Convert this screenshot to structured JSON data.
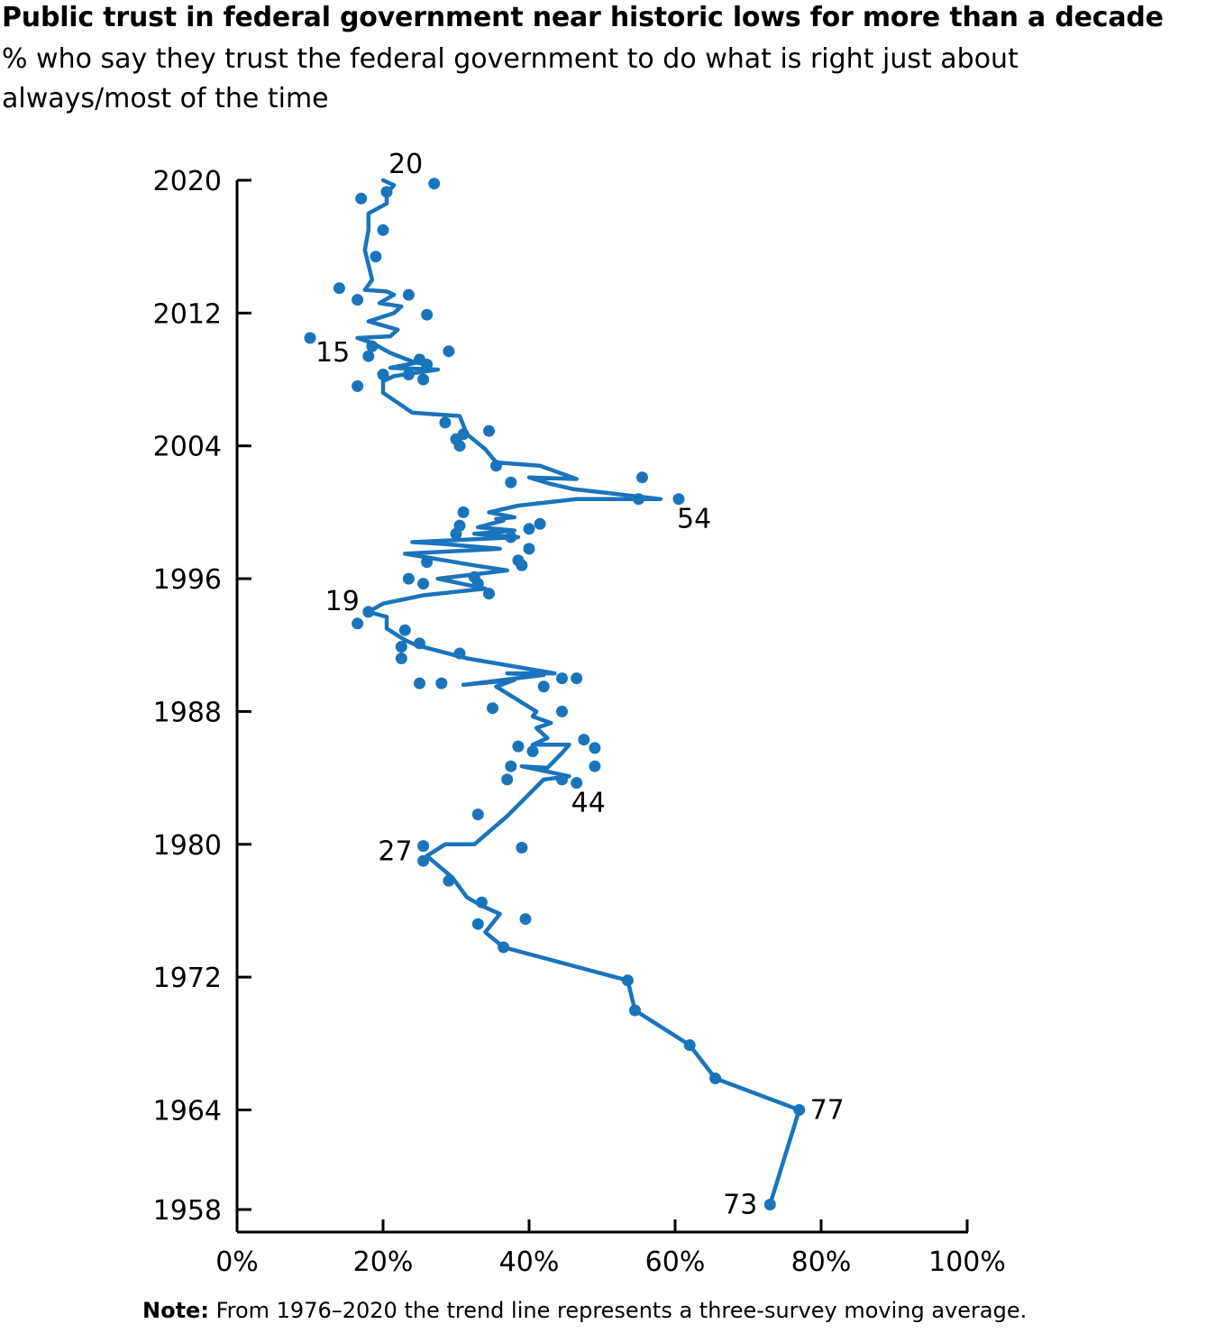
{
  "chart_data": {
    "type": "scatter",
    "title": "Public trust in federal government near historic lows for more than a decade",
    "subtitle": "% who say they trust the federal government to do what is right just about always/most of the time",
    "note_label": "Note:",
    "note_text": "From 1976–2020 the trend line represents a three-survey moving average.",
    "orientation": "vertical-time",
    "x_axis": {
      "min": 0,
      "max": 100,
      "ticks": [
        0,
        20,
        40,
        60,
        80,
        100
      ],
      "tick_labels": [
        "0%",
        "20%",
        "40%",
        "60%",
        "80%",
        "100%"
      ]
    },
    "y_axis": {
      "min": 1958,
      "max": 2020,
      "ticks": [
        1958,
        1964,
        1972,
        1980,
        1988,
        1996,
        2004,
        2012,
        2020
      ],
      "tick_labels": [
        "1958",
        "1964",
        "1972",
        "1980",
        "1988",
        "1996",
        "2004",
        "2012",
        "2020"
      ]
    },
    "color": "#1a74bb",
    "points": [
      {
        "x": 73,
        "y": 1958.3
      },
      {
        "x": 77,
        "y": 1964.0
      },
      {
        "x": 65.5,
        "y": 1965.9
      },
      {
        "x": 62,
        "y": 1967.9
      },
      {
        "x": 54.5,
        "y": 1970.0
      },
      {
        "x": 53.5,
        "y": 1971.8
      },
      {
        "x": 36.5,
        "y": 1973.8
      },
      {
        "x": 33,
        "y": 1975.2
      },
      {
        "x": 39.5,
        "y": 1975.5
      },
      {
        "x": 33.5,
        "y": 1976.5
      },
      {
        "x": 29,
        "y": 1977.8
      },
      {
        "x": 25.5,
        "y": 1979.0
      },
      {
        "x": 25.5,
        "y": 1979.9
      },
      {
        "x": 39,
        "y": 1979.8
      },
      {
        "x": 33,
        "y": 1981.8
      },
      {
        "x": 37,
        "y": 1983.9
      },
      {
        "x": 44.5,
        "y": 1983.9
      },
      {
        "x": 46.5,
        "y": 1983.7
      },
      {
        "x": 37.5,
        "y": 1984.7
      },
      {
        "x": 49,
        "y": 1984.7
      },
      {
        "x": 38.5,
        "y": 1985.9
      },
      {
        "x": 40.5,
        "y": 1985.6
      },
      {
        "x": 47.5,
        "y": 1986.3
      },
      {
        "x": 49,
        "y": 1985.8
      },
      {
        "x": 44.5,
        "y": 1988.0
      },
      {
        "x": 35,
        "y": 1988.2
      },
      {
        "x": 25,
        "y": 1989.7
      },
      {
        "x": 28,
        "y": 1989.7
      },
      {
        "x": 42,
        "y": 1989.5
      },
      {
        "x": 44.5,
        "y": 1990.0
      },
      {
        "x": 46.5,
        "y": 1990.0
      },
      {
        "x": 30.5,
        "y": 1991.5
      },
      {
        "x": 22.5,
        "y": 1991.2
      },
      {
        "x": 22.5,
        "y": 1991.9
      },
      {
        "x": 25,
        "y": 1992.1
      },
      {
        "x": 23,
        "y": 1992.9
      },
      {
        "x": 16.5,
        "y": 1993.3
      },
      {
        "x": 18,
        "y": 1994.0
      },
      {
        "x": 34.5,
        "y": 1995.1
      },
      {
        "x": 25.5,
        "y": 1995.7
      },
      {
        "x": 33,
        "y": 1995.7
      },
      {
        "x": 23.5,
        "y": 1996.0
      },
      {
        "x": 32.5,
        "y": 1996.1
      },
      {
        "x": 26,
        "y": 1997.0
      },
      {
        "x": 39,
        "y": 1996.8
      },
      {
        "x": 38.5,
        "y": 1997.1
      },
      {
        "x": 40,
        "y": 1997.8
      },
      {
        "x": 37.5,
        "y": 1998.5
      },
      {
        "x": 30,
        "y": 1998.7
      },
      {
        "x": 40,
        "y": 1999.0
      },
      {
        "x": 30.5,
        "y": 1999.2
      },
      {
        "x": 41.5,
        "y": 1999.3
      },
      {
        "x": 31,
        "y": 2000.0
      },
      {
        "x": 55,
        "y": 2000.8
      },
      {
        "x": 60.5,
        "y": 2000.8
      },
      {
        "x": 37.5,
        "y": 2001.8
      },
      {
        "x": 55.5,
        "y": 2002.1
      },
      {
        "x": 35.5,
        "y": 2002.8
      },
      {
        "x": 30.5,
        "y": 2004.0
      },
      {
        "x": 30,
        "y": 2004.4
      },
      {
        "x": 31,
        "y": 2004.7
      },
      {
        "x": 34.5,
        "y": 2004.9
      },
      {
        "x": 28.5,
        "y": 2005.4
      },
      {
        "x": 16.5,
        "y": 2007.6
      },
      {
        "x": 25.5,
        "y": 2008.0
      },
      {
        "x": 20,
        "y": 2008.3
      },
      {
        "x": 23.5,
        "y": 2008.3
      },
      {
        "x": 26,
        "y": 2008.9
      },
      {
        "x": 25,
        "y": 2009.2
      },
      {
        "x": 18,
        "y": 2009.4
      },
      {
        "x": 29,
        "y": 2009.7
      },
      {
        "x": 18.5,
        "y": 2010.0
      },
      {
        "x": 10,
        "y": 2010.5
      },
      {
        "x": 26,
        "y": 2011.9
      },
      {
        "x": 16.5,
        "y": 2012.8
      },
      {
        "x": 23.5,
        "y": 2013.1
      },
      {
        "x": 14,
        "y": 2013.5
      },
      {
        "x": 19,
        "y": 2015.4
      },
      {
        "x": 20,
        "y": 2017.0
      },
      {
        "x": 17,
        "y": 2018.9
      },
      {
        "x": 20.5,
        "y": 2019.3
      },
      {
        "x": 27,
        "y": 2019.8
      }
    ],
    "trend_line": [
      [
        73,
        1958.3
      ],
      [
        77,
        1964.0
      ],
      [
        65.5,
        1965.9
      ],
      [
        62,
        1967.9
      ],
      [
        54.5,
        1970.0
      ],
      [
        53.5,
        1971.8
      ],
      [
        36.5,
        1973.8
      ],
      [
        34,
        1974.7
      ],
      [
        36,
        1975.8
      ],
      [
        33.5,
        1976.3
      ],
      [
        31.5,
        1976.8
      ],
      [
        29.5,
        1978.0
      ],
      [
        26,
        1979.3
      ],
      [
        28.5,
        1980.0
      ],
      [
        32.5,
        1980.0
      ],
      [
        37,
        1981.7
      ],
      [
        42,
        1983.9
      ],
      [
        45.5,
        1984.1
      ],
      [
        39,
        1984.7
      ],
      [
        42.5,
        1984.6
      ],
      [
        44.5,
        1985.5
      ],
      [
        45.5,
        1986.0
      ],
      [
        40.5,
        1986.0
      ],
      [
        42.5,
        1986.4
      ],
      [
        41,
        1987.0
      ],
      [
        43,
        1987.3
      ],
      [
        40.5,
        1987.7
      ],
      [
        41,
        1988.0
      ],
      [
        35.5,
        1989.5
      ],
      [
        38,
        1989.9
      ],
      [
        31,
        1989.6
      ],
      [
        42,
        1990.2
      ],
      [
        37,
        1990.3
      ],
      [
        43.5,
        1990.3
      ],
      [
        31.5,
        1991.2
      ],
      [
        24.5,
        1992.0
      ],
      [
        23,
        1992.3
      ],
      [
        20.5,
        1993.0
      ],
      [
        20.5,
        1993.7
      ],
      [
        18,
        1994.0
      ],
      [
        20,
        1994.5
      ],
      [
        25.5,
        1995.0
      ],
      [
        34,
        1995.4
      ],
      [
        27.5,
        1996.0
      ],
      [
        37,
        1996.5
      ],
      [
        32.5,
        1996.8
      ],
      [
        23,
        1997.5
      ],
      [
        36,
        1997.8
      ],
      [
        28,
        1998.1
      ],
      [
        24,
        1998.2
      ],
      [
        38.5,
        1998.5
      ],
      [
        32.5,
        1998.7
      ],
      [
        38,
        1998.9
      ],
      [
        33,
        1999.1
      ],
      [
        36.5,
        1999.5
      ],
      [
        35.5,
        1999.6
      ],
      [
        38,
        1999.7
      ],
      [
        34.5,
        2000.0
      ],
      [
        38.5,
        2000.4
      ],
      [
        46.5,
        2000.8
      ],
      [
        58,
        2000.8
      ],
      [
        46,
        2001.4
      ],
      [
        43,
        2001.7
      ],
      [
        40,
        2002.1
      ],
      [
        46.5,
        2002.0
      ],
      [
        41.5,
        2002.8
      ],
      [
        35.5,
        2003.0
      ],
      [
        34,
        2003.8
      ],
      [
        31.5,
        2004.7
      ],
      [
        30.5,
        2005.8
      ],
      [
        24,
        2006.0
      ],
      [
        22,
        2006.6
      ],
      [
        20,
        2007.2
      ],
      [
        20,
        2007.9
      ],
      [
        21.5,
        2008.2
      ],
      [
        24.5,
        2008.4
      ],
      [
        27.5,
        2008.6
      ],
      [
        21,
        2008.7
      ],
      [
        24.5,
        2009.0
      ],
      [
        21,
        2009.6
      ],
      [
        18.5,
        2010.2
      ],
      [
        16.5,
        2010.5
      ],
      [
        21,
        2010.6
      ],
      [
        22,
        2011.0
      ],
      [
        18,
        2011.5
      ],
      [
        21.5,
        2012.0
      ],
      [
        22.5,
        2012.4
      ],
      [
        19.5,
        2012.6
      ],
      [
        21.5,
        2013.1
      ],
      [
        20.5,
        2013.3
      ],
      [
        17.5,
        2013.4
      ],
      [
        18.5,
        2014.0
      ],
      [
        17.5,
        2015.8
      ],
      [
        18,
        2017.0
      ],
      [
        18,
        2018.0
      ],
      [
        20.5,
        2018.6
      ],
      [
        20.5,
        2019.2
      ],
      [
        21.5,
        2019.7
      ],
      [
        20,
        2020.0
      ]
    ],
    "annotations": [
      {
        "text": "20",
        "x": 20,
        "y": 2020
      },
      {
        "text": "15",
        "x": 10,
        "y": 2010.5
      },
      {
        "text": "54",
        "x": 60.5,
        "y": 2000.8
      },
      {
        "text": "19",
        "x": 18,
        "y": 1994
      },
      {
        "text": "44",
        "x": 46.5,
        "y": 1983.7
      },
      {
        "text": "27",
        "x": 25.5,
        "y": 1979.9
      },
      {
        "text": "77",
        "x": 77,
        "y": 1964
      },
      {
        "text": "73",
        "x": 73,
        "y": 1958.3
      }
    ]
  }
}
